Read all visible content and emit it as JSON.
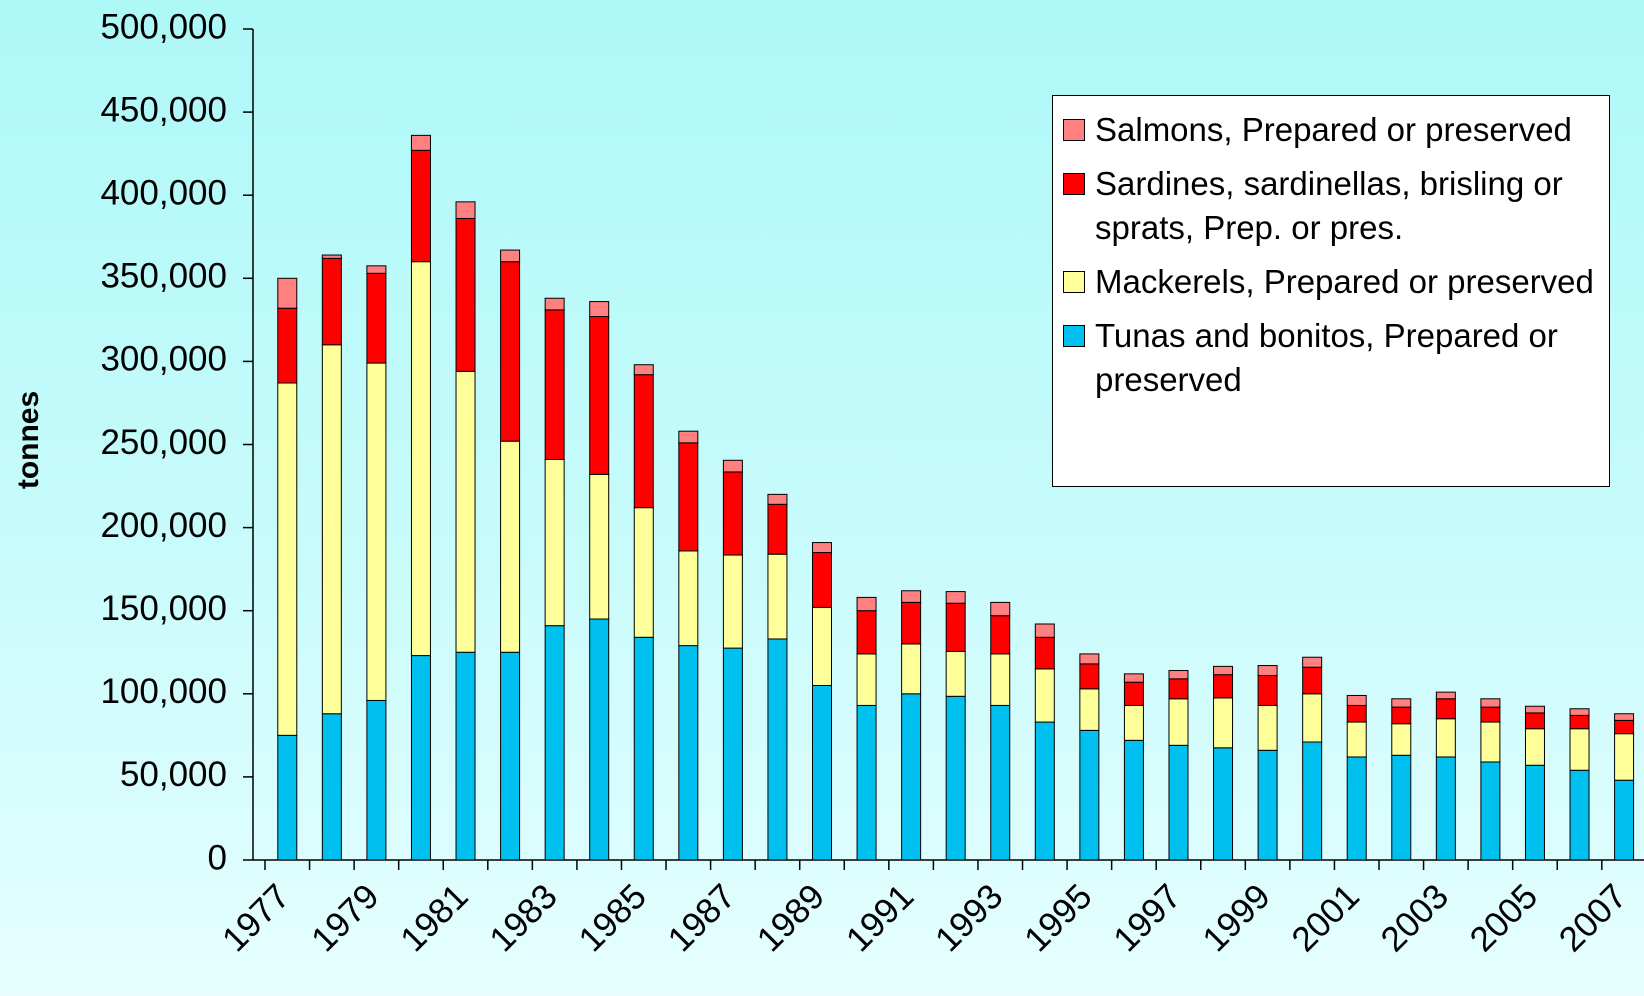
{
  "chart_data": {
    "type": "stacked_bar",
    "y_axis_label": "tonnes",
    "categories": [
      "1977",
      null,
      "1979",
      null,
      "1981",
      null,
      "1983",
      null,
      "1985",
      null,
      "1987",
      null,
      "1989",
      null,
      "1991",
      null,
      "1993",
      null,
      "1995",
      null,
      "1997",
      null,
      "1999",
      null,
      "2001",
      null,
      "2003",
      null,
      "2005",
      null,
      "2007"
    ],
    "series": [
      {
        "name": "Tunas and bonitos, Prepared or preserved",
        "color": "#00c0f0",
        "values": [
          75000,
          88000,
          96000,
          123000,
          125000,
          125000,
          141000,
          145000,
          134000,
          129000,
          127500,
          133000,
          105000,
          93000,
          100000,
          98500,
          93000,
          83000,
          78000,
          72000,
          69000,
          67500,
          66000,
          71000,
          62000,
          63000,
          62000,
          59000,
          57000,
          54000,
          48000
        ]
      },
      {
        "name": "Mackerels, Prepared or preserved",
        "color": "#ffff99",
        "values": [
          212000,
          222000,
          203000,
          237000,
          169000,
          127000,
          100000,
          87000,
          78000,
          57000,
          56000,
          51000,
          47000,
          31000,
          30000,
          27000,
          31000,
          32000,
          25000,
          21000,
          28000,
          30000,
          27000,
          29000,
          21000,
          19000,
          23000,
          24000,
          22000,
          25000,
          28000
        ]
      },
      {
        "name": "Sardines, sardinellas, brisling or sprats, Prep. or pres.",
        "color": "#ff0000",
        "values": [
          45000,
          52000,
          54000,
          67000,
          92000,
          108000,
          90000,
          95000,
          80000,
          65000,
          50000,
          30000,
          33000,
          26000,
          25000,
          29000,
          23000,
          19000,
          15000,
          14000,
          12000,
          14000,
          18000,
          16000,
          10000,
          10000,
          12000,
          9000,
          9500,
          8000,
          8000
        ]
      },
      {
        "name": "Salmons, Prepared or preserved",
        "color": "#ff8080",
        "values": [
          18000,
          2000,
          4500,
          9000,
          10000,
          7000,
          7000,
          9000,
          6000,
          7000,
          7000,
          6000,
          6000,
          8000,
          7000,
          7000,
          8000,
          8000,
          6000,
          5000,
          5000,
          5000,
          6000,
          6000,
          6000,
          5000,
          4000,
          5000,
          4000,
          4000,
          4000
        ]
      }
    ],
    "ylim": [
      0,
      500000
    ],
    "yticks": [
      0,
      {
        "value": 50000,
        "label": "50,000"
      },
      {
        "value": 100000,
        "label": "100,000"
      },
      {
        "value": 150000,
        "label": "150,000"
      },
      {
        "value": 200000,
        "label": "200,000"
      },
      {
        "value": 250000,
        "label": "250,000"
      },
      {
        "value": 300000,
        "label": "300,000"
      },
      {
        "value": 350000,
        "label": "350,000"
      },
      {
        "value": 400000,
        "label": "400,000"
      },
      {
        "value": 450000,
        "label": "450,000"
      },
      {
        "value": 500000,
        "label": "500,000"
      }
    ],
    "legend": "upper right",
    "grid": false
  }
}
